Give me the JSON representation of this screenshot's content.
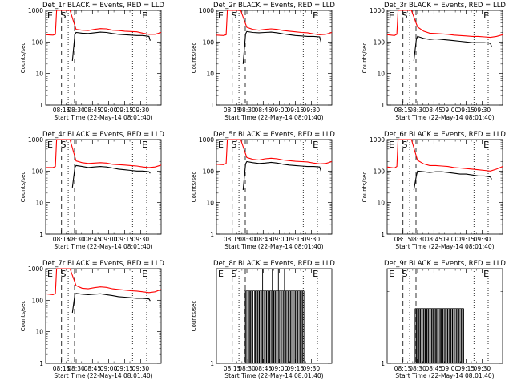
{
  "chart_data": [
    {
      "type": "line",
      "title": "Det_1r BLACK = Events, RED = LLD",
      "xlabel": "Start Time (22-May-14 08:01:40)",
      "ylabel": "Counts/sec",
      "yscale": "log",
      "ylim": [
        1,
        1000
      ],
      "x_tick_labels": [
        "08:15",
        "08:30",
        "08:45",
        "09:00",
        "09:15",
        "09:30"
      ],
      "y_tick_labels": [
        "1",
        "10",
        "100",
        "1000"
      ],
      "markers": [
        "E",
        "S",
        "E"
      ],
      "series": [
        {
          "name": "RED",
          "color": "#ff0000",
          "x": [
            0,
            6,
            8,
            9,
            10,
            12,
            15,
            18,
            20,
            25,
            30,
            35,
            40,
            45,
            50,
            55,
            60,
            65,
            70,
            75,
            80,
            85,
            90,
            95
          ],
          "y": [
            170,
            165,
            175,
            1000,
            1000,
            1000,
            1000,
            1000,
            1000,
            250,
            235,
            230,
            250,
            265,
            260,
            235,
            230,
            220,
            215,
            210,
            190,
            175,
            175,
            200
          ]
        },
        {
          "name": "BLACK",
          "color": "#000000",
          "x": [
            22,
            24,
            25,
            30,
            35,
            40,
            45,
            50,
            55,
            60,
            65,
            70,
            75,
            80,
            85,
            86
          ],
          "y": [
            25,
            170,
            200,
            190,
            185,
            195,
            205,
            200,
            185,
            175,
            170,
            165,
            160,
            160,
            150,
            110
          ]
        }
      ]
    },
    {
      "type": "line",
      "title": "Det_2r BLACK = Events, RED = LLD",
      "xlabel": "Start Time (22-May-14 08:01:40)",
      "ylabel": "Counts/sec",
      "yscale": "log",
      "ylim": [
        1,
        1000
      ],
      "x_tick_labels": [
        "08:15",
        "08:30",
        "08:45",
        "09:00",
        "09:15",
        "09:30"
      ],
      "y_tick_labels": [
        "1",
        "10",
        "100",
        "1000"
      ],
      "markers": [
        "E",
        "S",
        "E"
      ],
      "series": [
        {
          "name": "RED",
          "color": "#ff0000",
          "x": [
            0,
            6,
            8,
            9,
            10,
            12,
            15,
            18,
            20,
            25,
            30,
            35,
            40,
            45,
            50,
            55,
            60,
            65,
            70,
            75,
            80,
            85,
            90,
            95
          ],
          "y": [
            165,
            160,
            170,
            1000,
            1000,
            1000,
            1000,
            1000,
            1000,
            290,
            250,
            235,
            250,
            260,
            250,
            230,
            220,
            210,
            200,
            195,
            180,
            170,
            175,
            200
          ]
        },
        {
          "name": "BLACK",
          "color": "#000000",
          "x": [
            22,
            24,
            25,
            30,
            35,
            40,
            45,
            50,
            55,
            60,
            65,
            70,
            75,
            80,
            85,
            86
          ],
          "y": [
            20,
            180,
            215,
            200,
            195,
            200,
            205,
            195,
            180,
            170,
            160,
            155,
            150,
            150,
            145,
            100
          ]
        }
      ]
    },
    {
      "type": "line",
      "title": "Det_3r BLACK = Events, RED = LLD",
      "xlabel": "Start Time (22-May-14 08:01:40)",
      "ylabel": "Counts/sec",
      "yscale": "log",
      "ylim": [
        1,
        1000
      ],
      "x_tick_labels": [
        "08:15",
        "08:30",
        "08:45",
        "09:00",
        "09:15",
        "09:30"
      ],
      "y_tick_labels": [
        "1",
        "10",
        "100",
        "1000"
      ],
      "markers": [
        "E",
        "S",
        "E"
      ],
      "series": [
        {
          "name": "RED",
          "color": "#ff0000",
          "x": [
            0,
            6,
            8,
            9,
            10,
            12,
            15,
            18,
            20,
            25,
            30,
            35,
            40,
            45,
            50,
            55,
            60,
            65,
            70,
            75,
            80,
            85,
            90,
            95
          ],
          "y": [
            170,
            160,
            175,
            1000,
            1000,
            1000,
            1000,
            1000,
            1000,
            300,
            220,
            190,
            185,
            180,
            175,
            165,
            160,
            155,
            150,
            150,
            145,
            140,
            150,
            170
          ]
        },
        {
          "name": "BLACK",
          "color": "#000000",
          "x": [
            22,
            24,
            25,
            30,
            35,
            40,
            45,
            50,
            55,
            60,
            65,
            70,
            75,
            80,
            85,
            86
          ],
          "y": [
            25,
            120,
            150,
            130,
            120,
            125,
            120,
            115,
            110,
            105,
            100,
            95,
            95,
            95,
            90,
            70
          ]
        }
      ]
    },
    {
      "type": "line",
      "title": "Det_4r BLACK = Events, RED = LLD",
      "xlabel": "Start Time (22-May-14 08:01:40)",
      "ylabel": "Counts/sec",
      "yscale": "log",
      "ylim": [
        1,
        1000
      ],
      "x_tick_labels": [
        "08:15",
        "08:30",
        "08:45",
        "09:00",
        "09:15",
        "09:30"
      ],
      "y_tick_labels": [
        "1",
        "10",
        "100",
        "1000"
      ],
      "markers": [
        "E",
        "S",
        "E"
      ],
      "series": [
        {
          "name": "RED",
          "color": "#ff0000",
          "x": [
            0,
            6,
            8,
            9,
            10,
            12,
            15,
            18,
            20,
            25,
            30,
            35,
            40,
            45,
            50,
            55,
            60,
            65,
            70,
            75,
            80,
            85,
            90,
            95
          ],
          "y": [
            130,
            130,
            140,
            1000,
            1000,
            1000,
            1000,
            1000,
            1000,
            210,
            185,
            175,
            180,
            185,
            180,
            165,
            160,
            155,
            150,
            145,
            135,
            130,
            135,
            155
          ]
        },
        {
          "name": "BLACK",
          "color": "#000000",
          "x": [
            22,
            24,
            25,
            30,
            35,
            40,
            45,
            50,
            55,
            60,
            65,
            70,
            75,
            80,
            85,
            86
          ],
          "y": [
            30,
            130,
            150,
            140,
            130,
            135,
            140,
            135,
            125,
            115,
            110,
            105,
            100,
            100,
            95,
            85
          ]
        }
      ]
    },
    {
      "type": "line",
      "title": "Det_5r BLACK = Events, RED = LLD",
      "xlabel": "Start Time (22-May-14 08:01:40)",
      "ylabel": "Counts/sec",
      "yscale": "log",
      "ylim": [
        1,
        1000
      ],
      "x_tick_labels": [
        "08:15",
        "08:30",
        "08:45",
        "09:00",
        "09:15",
        "09:30"
      ],
      "y_tick_labels": [
        "1",
        "10",
        "100",
        "1000"
      ],
      "markers": [
        "E",
        "S",
        "E"
      ],
      "series": [
        {
          "name": "RED",
          "color": "#ff0000",
          "x": [
            0,
            6,
            8,
            9,
            10,
            12,
            15,
            18,
            20,
            25,
            30,
            35,
            40,
            45,
            50,
            55,
            60,
            65,
            70,
            75,
            80,
            85,
            90,
            95
          ],
          "y": [
            165,
            160,
            175,
            1000,
            1000,
            1000,
            1000,
            1000,
            1000,
            270,
            235,
            225,
            245,
            255,
            245,
            225,
            215,
            205,
            200,
            195,
            180,
            170,
            175,
            200
          ]
        },
        {
          "name": "BLACK",
          "color": "#000000",
          "x": [
            22,
            24,
            25,
            30,
            35,
            40,
            45,
            50,
            55,
            60,
            65,
            70,
            75,
            80,
            85,
            86
          ],
          "y": [
            25,
            170,
            200,
            185,
            175,
            180,
            190,
            180,
            165,
            155,
            150,
            145,
            140,
            140,
            135,
            100
          ]
        }
      ]
    },
    {
      "type": "line",
      "title": "Det_6r BLACK = Events, RED = LLD",
      "xlabel": "Start Time (22-May-14 08:01:40)",
      "ylabel": "Counts/sec",
      "yscale": "log",
      "ylim": [
        1,
        1000
      ],
      "x_tick_labels": [
        "08:15",
        "08:30",
        "08:45",
        "09:00",
        "09:15",
        "09:30"
      ],
      "y_tick_labels": [
        "1",
        "10",
        "100",
        "1000"
      ],
      "markers": [
        "E",
        "S",
        "E"
      ],
      "series": [
        {
          "name": "RED",
          "color": "#ff0000",
          "x": [
            0,
            6,
            8,
            9,
            10,
            12,
            15,
            18,
            20,
            25,
            30,
            35,
            40,
            45,
            50,
            55,
            60,
            65,
            70,
            75,
            80,
            85,
            90,
            95
          ],
          "y": [
            135,
            125,
            140,
            1000,
            1000,
            1000,
            1000,
            1000,
            1000,
            220,
            170,
            150,
            150,
            145,
            140,
            130,
            125,
            120,
            115,
            110,
            105,
            100,
            115,
            140
          ]
        },
        {
          "name": "BLACK",
          "color": "#000000",
          "x": [
            22,
            24,
            25,
            30,
            35,
            40,
            45,
            50,
            55,
            60,
            65,
            70,
            75,
            80,
            85,
            86
          ],
          "y": [
            25,
            70,
            100,
            95,
            90,
            95,
            95,
            90,
            85,
            80,
            80,
            75,
            70,
            70,
            65,
            55
          ]
        }
      ]
    },
    {
      "type": "line",
      "title": "Det_7r BLACK = Events, RED = LLD",
      "xlabel": "Start Time (22-May-14 08:01:40)",
      "ylabel": "Counts/sec",
      "yscale": "log",
      "ylim": [
        1,
        1000
      ],
      "x_tick_labels": [
        "08:15",
        "08:30",
        "08:45",
        "09:00",
        "09:15",
        "09:30"
      ],
      "y_tick_labels": [
        "1",
        "10",
        "100",
        "1000"
      ],
      "markers": [
        "E",
        "S",
        "E"
      ],
      "series": [
        {
          "name": "RED",
          "color": "#ff0000",
          "x": [
            0,
            6,
            8,
            9,
            10,
            12,
            15,
            18,
            20,
            25,
            30,
            35,
            40,
            45,
            50,
            55,
            60,
            65,
            70,
            75,
            80,
            85,
            90,
            95
          ],
          "y": [
            160,
            150,
            165,
            1000,
            1000,
            1000,
            1000,
            1000,
            1000,
            290,
            240,
            230,
            250,
            265,
            255,
            230,
            220,
            210,
            200,
            195,
            185,
            175,
            185,
            220
          ]
        },
        {
          "name": "BLACK",
          "color": "#000000",
          "x": [
            22,
            24,
            25,
            30,
            35,
            40,
            45,
            50,
            55,
            60,
            65,
            70,
            75,
            80,
            85,
            86
          ],
          "y": [
            40,
            150,
            165,
            155,
            150,
            155,
            160,
            150,
            140,
            130,
            125,
            120,
            115,
            115,
            110,
            95
          ]
        }
      ]
    },
    {
      "type": "bar",
      "title": "Det_8r BLACK = Events, RED = LLD",
      "xlabel": "Start Time (22-May-14 08:01:40)",
      "ylabel": "Counts/sec",
      "yscale": "log",
      "ylim": [
        1,
        2
      ],
      "x_tick_labels": [
        "08:15",
        "08:30",
        "08:45",
        "09:00",
        "09:15",
        "09:30"
      ],
      "y_tick_labels": [
        "1"
      ],
      "markers": [
        "E",
        "S",
        "E"
      ],
      "spikes": {
        "color": "#000000",
        "value_low": 1.7,
        "value_high": 2.0,
        "x": [
          23,
          24,
          25,
          26.5,
          27.5,
          28,
          29,
          30,
          31.5,
          32,
          33,
          34,
          35,
          35.5,
          36.5,
          37.5,
          38,
          39,
          40,
          41,
          41.5,
          42.5,
          43.5,
          44,
          45,
          46,
          47,
          47.5,
          48.5,
          49.5,
          50,
          51,
          52,
          53,
          54,
          55,
          56,
          57,
          58,
          59,
          60,
          61,
          62,
          63,
          64,
          65,
          66,
          67,
          68,
          69,
          70,
          71,
          72
        ],
        "y": [
          1.7,
          1.7,
          1.7,
          1.7,
          1.7,
          1.7,
          1.7,
          1.7,
          1.7,
          1.7,
          1.7,
          1.7,
          1.7,
          1.7,
          1.7,
          1.7,
          2,
          1.7,
          1.7,
          1.7,
          1.7,
          1.7,
          1.7,
          1.7,
          1.7,
          2,
          1.7,
          1.7,
          1.7,
          1.7,
          1.7,
          2,
          1.7,
          1.7,
          1.7,
          1.7,
          2,
          1.7,
          1.7,
          1.7,
          1.7,
          1.7,
          1.7,
          2,
          1.7,
          1.7,
          1.7,
          1.7,
          1.7,
          1.7,
          1.7,
          1.7,
          1.7
        ]
      }
    },
    {
      "type": "bar",
      "title": "Det_9r BLACK = Events, RED = LLD",
      "xlabel": "Start Time (22-May-14 08:01:40)",
      "ylabel": "",
      "yscale": "log",
      "ylim": [
        1,
        2.5
      ],
      "x_tick_labels": [
        "08:15",
        "08:30",
        "08:45",
        "09:00",
        "09:15",
        "09:30"
      ],
      "y_tick_labels": [
        "1"
      ],
      "markers": [
        "E",
        "S",
        "E"
      ],
      "spikes": {
        "color": "#000000",
        "value_low": 1.7,
        "value_high": 1.7,
        "x": [
          23,
          24,
          24.5,
          25.5,
          26,
          27,
          27.5,
          28.5,
          29,
          30,
          31,
          31.5,
          32.5,
          33,
          34,
          35,
          35.5,
          36.5,
          37,
          38,
          39,
          40,
          40.5,
          41.5,
          42,
          43,
          44,
          44.5,
          45.5,
          46,
          47,
          48,
          48.5,
          49.5,
          50,
          51,
          52,
          52.5,
          53.5,
          54,
          55,
          56,
          57,
          58,
          59,
          60,
          61,
          62,
          63
        ],
        "y": [
          1.7,
          1.7,
          1.7,
          1.7,
          1.7,
          1.7,
          1.7,
          1.7,
          1.7,
          1.7,
          1.7,
          1.7,
          1.7,
          1.7,
          1.7,
          1.7,
          1.7,
          1.7,
          1.7,
          1.7,
          1.7,
          1.7,
          1.7,
          1.7,
          1.7,
          1.7,
          1.7,
          1.7,
          1.7,
          1.7,
          1.7,
          1.7,
          1.7,
          1.7,
          1.7,
          1.7,
          1.7,
          1.7,
          1.7,
          1.7,
          1.7,
          1.7,
          1.7,
          1.7,
          1.7,
          1.7,
          1.7,
          1.7,
          1.7
        ]
      }
    }
  ]
}
